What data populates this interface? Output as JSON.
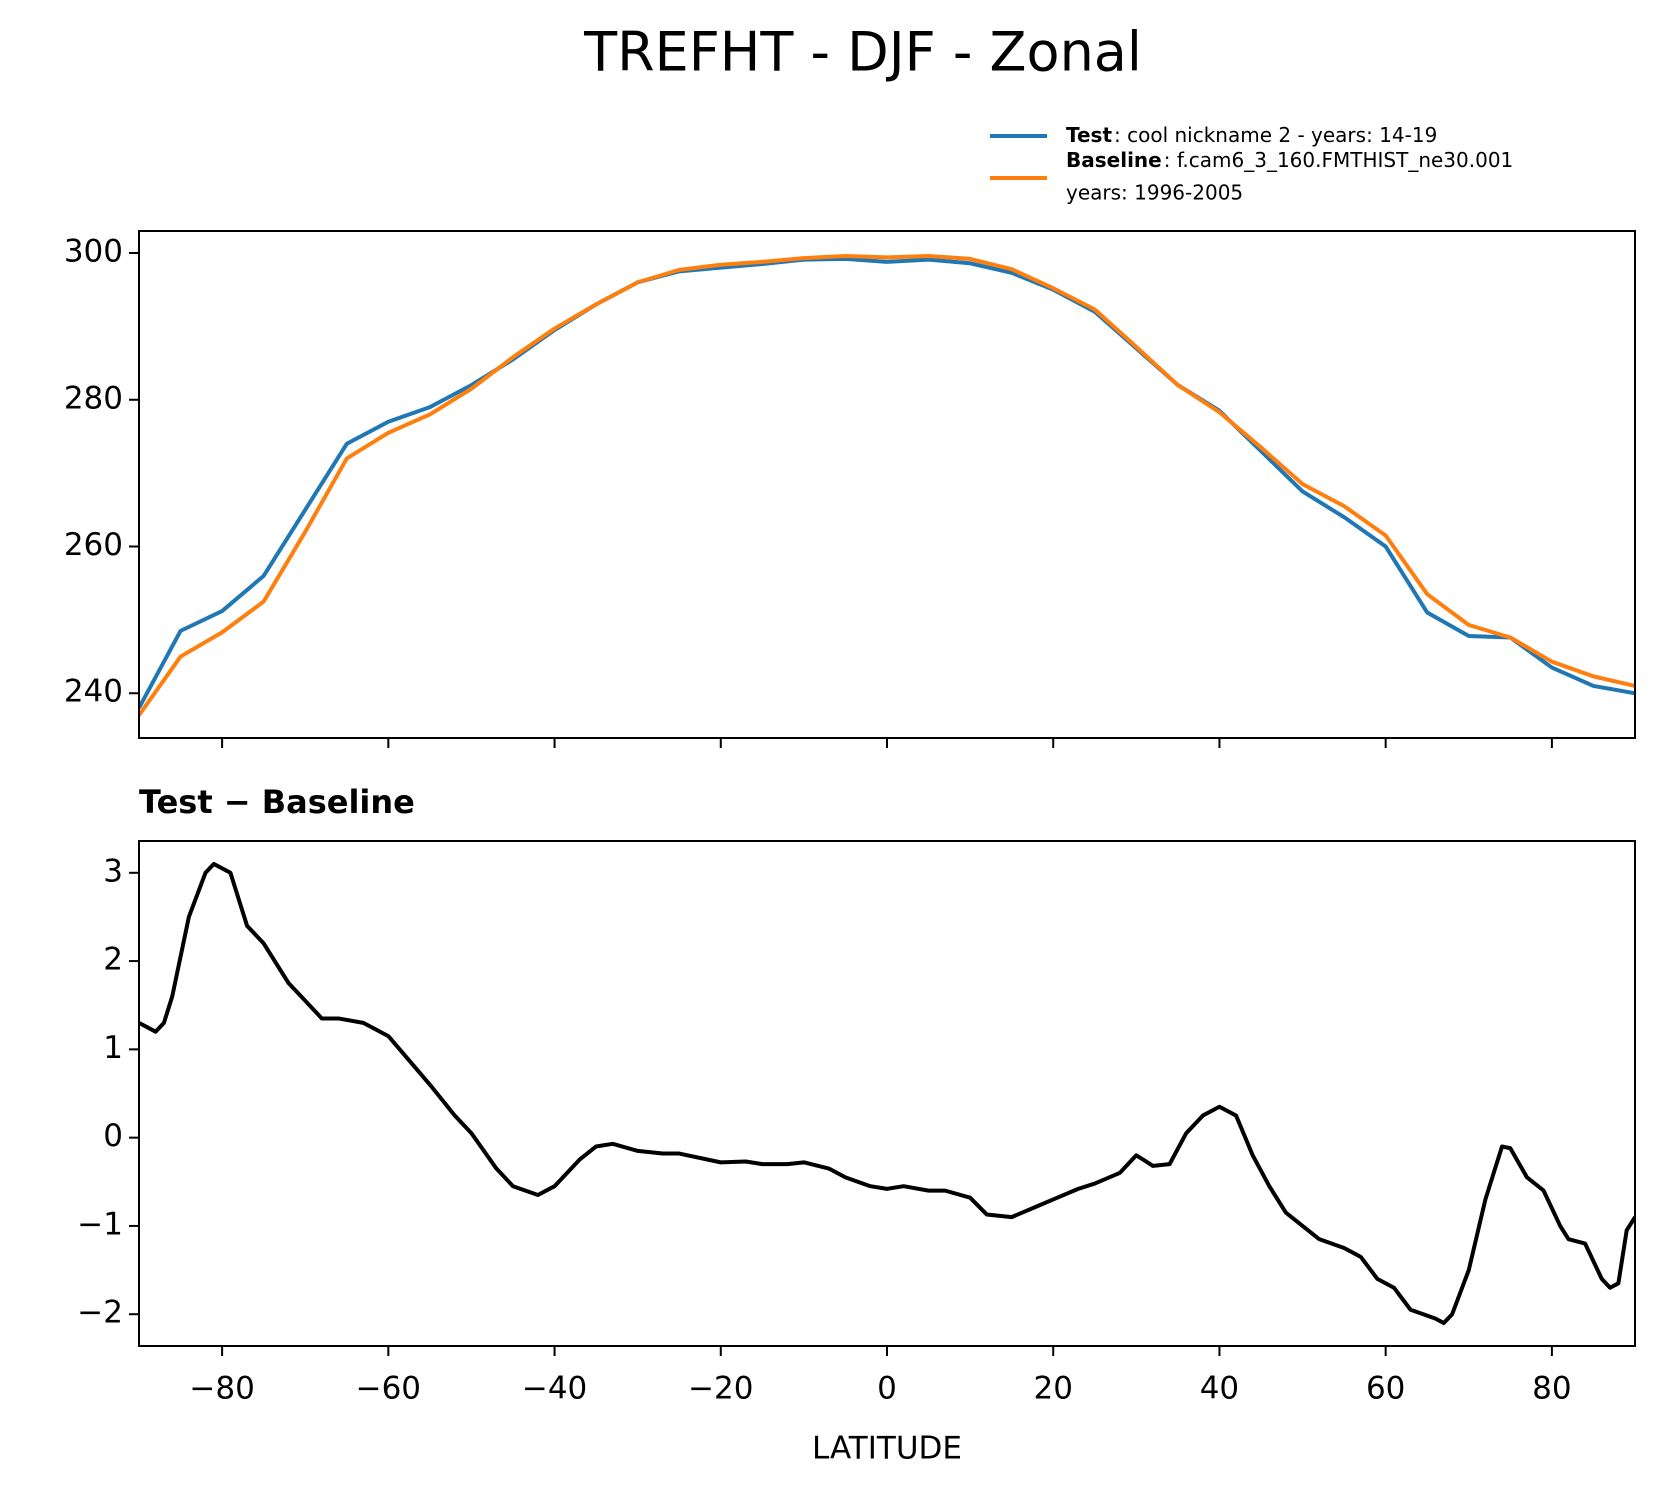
{
  "chart_data": [
    {
      "type": "line",
      "title": "TREFHT - DJF - Zonal",
      "x": [
        -90,
        -85,
        -80,
        -75,
        -70,
        -65,
        -60,
        -55,
        -50,
        -45,
        -40,
        -35,
        -30,
        -25,
        -20,
        -15,
        -10,
        -5,
        0,
        5,
        10,
        15,
        20,
        25,
        30,
        35,
        40,
        45,
        50,
        55,
        60,
        65,
        70,
        75,
        80,
        85,
        90
      ],
      "series": [
        {
          "name": "Test",
          "description": [
            ": cool nickname 2 - years: 14-19"
          ],
          "color": "#1f77b4",
          "values": [
            238,
            248.5,
            251.2,
            256,
            265,
            274,
            277,
            279,
            282,
            285.5,
            289.5,
            293,
            296,
            297.5,
            298,
            298.5,
            299.1,
            299.2,
            298.8,
            299.1,
            298.6,
            297.3,
            295,
            292,
            287,
            282,
            278.5,
            273,
            267.5,
            264,
            260,
            251,
            247.8,
            247.6,
            243.5,
            241,
            240
          ]
        },
        {
          "name": "Baseline",
          "description": [
            ": f.cam6_3_160.FMTHIST_ne30.001",
            "years: 1996-2005"
          ],
          "color": "#ff7f0e",
          "values": [
            237,
            245,
            248.3,
            252.5,
            262,
            272,
            275.5,
            278,
            281.5,
            285.8,
            289.7,
            293,
            296,
            297.7,
            298.4,
            298.8,
            299.3,
            299.6,
            299.4,
            299.6,
            299.2,
            297.8,
            295.2,
            292.3,
            287.2,
            282,
            278.3,
            273.5,
            268.5,
            265.5,
            261.5,
            253.5,
            249.3,
            247.6,
            244.3,
            242.3,
            241
          ]
        }
      ],
      "xlim": [
        -90,
        90
      ],
      "xticks": [
        -80,
        -60,
        -40,
        -20,
        0,
        20,
        40,
        60,
        80
      ],
      "ylim": [
        233.9,
        303.0
      ],
      "yticks": [
        240,
        260,
        280,
        300
      ]
    },
    {
      "type": "line",
      "title": "Test − Baseline",
      "xlabel": "LATITUDE",
      "x": [
        -90,
        -88,
        -87,
        -86,
        -84,
        -82,
        -81,
        -79,
        -77,
        -75,
        -72,
        -70,
        -68,
        -66,
        -63,
        -60,
        -55,
        -52,
        -50,
        -47,
        -45,
        -42,
        -40,
        -37,
        -35,
        -33,
        -30,
        -27,
        -25,
        -20,
        -17,
        -15,
        -12,
        -10,
        -7,
        -5,
        -2,
        0,
        2,
        5,
        7,
        10,
        12,
        15,
        18,
        20,
        23,
        25,
        28,
        30,
        32,
        34,
        36,
        38,
        40,
        42,
        44,
        46,
        48,
        50,
        52,
        55,
        57,
        59,
        61,
        63,
        66,
        67,
        68,
        70,
        72,
        74,
        75,
        77,
        79,
        81,
        82,
        84,
        86,
        87,
        88,
        89,
        90
      ],
      "series": [
        {
          "name": "Test − Baseline",
          "color": "#000000",
          "values": [
            1.3,
            1.2,
            1.3,
            1.6,
            2.5,
            3.0,
            3.1,
            3.0,
            2.4,
            2.2,
            1.75,
            1.55,
            1.35,
            1.35,
            1.3,
            1.15,
            0.6,
            0.25,
            0.05,
            -0.35,
            -0.55,
            -0.65,
            -0.55,
            -0.25,
            -0.1,
            -0.07,
            -0.15,
            -0.18,
            -0.18,
            -0.28,
            -0.27,
            -0.3,
            -0.3,
            -0.28,
            -0.35,
            -0.45,
            -0.55,
            -0.58,
            -0.55,
            -0.6,
            -0.6,
            -0.68,
            -0.87,
            -0.9,
            -0.78,
            -0.7,
            -0.58,
            -0.52,
            -0.4,
            -0.2,
            -0.32,
            -0.3,
            0.05,
            0.25,
            0.35,
            0.25,
            -0.2,
            -0.55,
            -0.85,
            -1.0,
            -1.15,
            -1.25,
            -1.35,
            -1.6,
            -1.7,
            -1.95,
            -2.05,
            -2.1,
            -2.0,
            -1.5,
            -0.7,
            -0.1,
            -0.12,
            -0.45,
            -0.6,
            -1.0,
            -1.15,
            -1.2,
            -1.6,
            -1.7,
            -1.65,
            -1.05,
            -0.9
          ]
        }
      ],
      "xlim": [
        -90,
        90
      ],
      "xticks": [
        {
          "value": -80,
          "label": "−80"
        },
        {
          "value": -60,
          "label": "−60"
        },
        {
          "value": -40,
          "label": "−40"
        },
        {
          "value": -20,
          "label": "−20"
        },
        0,
        20,
        40,
        60,
        80
      ],
      "ylim": [
        -2.36,
        3.36
      ],
      "yticks": [
        {
          "value": -2,
          "label": "−2"
        },
        {
          "value": -1,
          "label": "−1"
        },
        0,
        1,
        2,
        3
      ]
    }
  ]
}
